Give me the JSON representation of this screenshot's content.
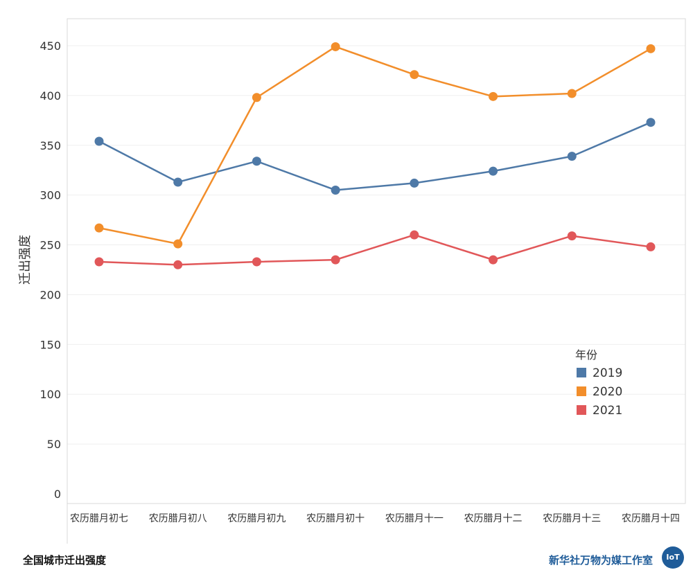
{
  "chart_data": {
    "type": "line",
    "title": "",
    "xlabel": "",
    "ylabel": "迁出强度",
    "categories": [
      "农历腊月初七",
      "农历腊月初八",
      "农历腊月初九",
      "农历腊月初十",
      "农历腊月十一",
      "农历腊月十二",
      "农历腊月十三",
      "农历腊月十四"
    ],
    "ylim": [
      0,
      475
    ],
    "yticks": [
      0,
      50,
      100,
      150,
      200,
      250,
      300,
      350,
      400,
      450
    ],
    "grid": true,
    "legend": {
      "title": "年份",
      "position": "right"
    },
    "series": [
      {
        "name": "2019",
        "color": "#4e79a7",
        "values": [
          354,
          313,
          334,
          305,
          312,
          324,
          339,
          373
        ]
      },
      {
        "name": "2020",
        "color": "#f28e2b",
        "values": [
          267,
          251,
          398,
          449,
          421,
          399,
          402,
          447
        ]
      },
      {
        "name": "2021",
        "color": "#e15759",
        "values": [
          233,
          230,
          233,
          235,
          260,
          235,
          259,
          248
        ]
      }
    ]
  },
  "footer": {
    "left_caption": "全国城市迁出强度",
    "right_caption": "新华社万物为媒工作室",
    "logo_text": "IoT"
  }
}
